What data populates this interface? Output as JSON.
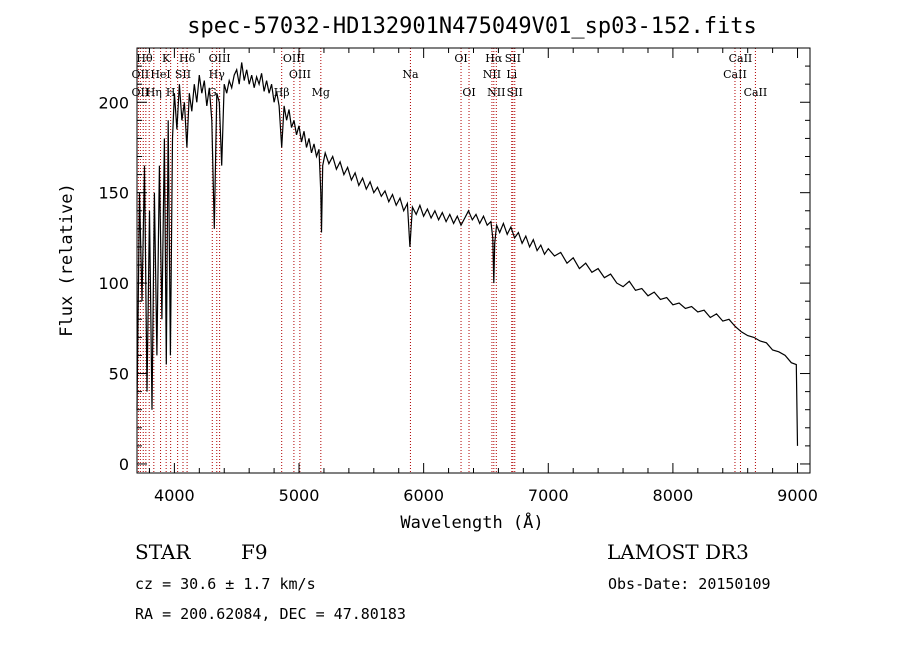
{
  "chart_data": {
    "type": "line",
    "title": "spec-57032-HD132901N475049V01_sp03-152.fits",
    "xlabel": "Wavelength (Å)",
    "ylabel": "Flux (relative)",
    "xlim": [
      3700,
      9100
    ],
    "ylim": [
      -5,
      230
    ],
    "x_ticks": [
      4000,
      5000,
      6000,
      7000,
      8000,
      9000
    ],
    "y_ticks": [
      0,
      50,
      100,
      150,
      200
    ],
    "grid": false,
    "series": [
      {
        "color": "#000000",
        "points": [
          [
            3700,
            30
          ],
          [
            3720,
            150
          ],
          [
            3740,
            90
          ],
          [
            3760,
            165
          ],
          [
            3780,
            40
          ],
          [
            3800,
            140
          ],
          [
            3820,
            30
          ],
          [
            3840,
            150
          ],
          [
            3860,
            60
          ],
          [
            3880,
            165
          ],
          [
            3900,
            80
          ],
          [
            3920,
            180
          ],
          [
            3935,
            55
          ],
          [
            3950,
            190
          ],
          [
            3968,
            60
          ],
          [
            3985,
            180
          ],
          [
            4000,
            205
          ],
          [
            4020,
            185
          ],
          [
            4040,
            210
          ],
          [
            4060,
            190
          ],
          [
            4080,
            200
          ],
          [
            4100,
            175
          ],
          [
            4120,
            205
          ],
          [
            4140,
            195
          ],
          [
            4160,
            210
          ],
          [
            4180,
            200
          ],
          [
            4200,
            215
          ],
          [
            4220,
            205
          ],
          [
            4240,
            212
          ],
          [
            4260,
            198
          ],
          [
            4280,
            208
          ],
          [
            4300,
            190
          ],
          [
            4320,
            130
          ],
          [
            4340,
            205
          ],
          [
            4360,
            200
          ],
          [
            4380,
            165
          ],
          [
            4400,
            210
          ],
          [
            4420,
            205
          ],
          [
            4440,
            212
          ],
          [
            4460,
            208
          ],
          [
            4480,
            215
          ],
          [
            4500,
            218
          ],
          [
            4520,
            210
          ],
          [
            4540,
            222
          ],
          [
            4560,
            212
          ],
          [
            4580,
            218
          ],
          [
            4600,
            210
          ],
          [
            4620,
            215
          ],
          [
            4640,
            208
          ],
          [
            4660,
            214
          ],
          [
            4680,
            210
          ],
          [
            4700,
            216
          ],
          [
            4720,
            206
          ],
          [
            4740,
            212
          ],
          [
            4760,
            205
          ],
          [
            4780,
            210
          ],
          [
            4800,
            200
          ],
          [
            4820,
            206
          ],
          [
            4840,
            198
          ],
          [
            4861,
            175
          ],
          [
            4880,
            198
          ],
          [
            4900,
            190
          ],
          [
            4920,
            196
          ],
          [
            4940,
            186
          ],
          [
            4960,
            190
          ],
          [
            4980,
            182
          ],
          [
            5000,
            187
          ],
          [
            5020,
            178
          ],
          [
            5040,
            184
          ],
          [
            5060,
            175
          ],
          [
            5080,
            180
          ],
          [
            5100,
            172
          ],
          [
            5120,
            177
          ],
          [
            5140,
            170
          ],
          [
            5160,
            174
          ],
          [
            5175,
            150
          ],
          [
            5180,
            128
          ],
          [
            5190,
            165
          ],
          [
            5210,
            172
          ],
          [
            5240,
            166
          ],
          [
            5270,
            170
          ],
          [
            5300,
            163
          ],
          [
            5330,
            167
          ],
          [
            5360,
            160
          ],
          [
            5390,
            164
          ],
          [
            5420,
            157
          ],
          [
            5450,
            161
          ],
          [
            5480,
            154
          ],
          [
            5510,
            158
          ],
          [
            5540,
            152
          ],
          [
            5570,
            156
          ],
          [
            5600,
            150
          ],
          [
            5630,
            153
          ],
          [
            5660,
            148
          ],
          [
            5690,
            151
          ],
          [
            5720,
            145
          ],
          [
            5750,
            149
          ],
          [
            5780,
            143
          ],
          [
            5810,
            147
          ],
          [
            5840,
            140
          ],
          [
            5870,
            144
          ],
          [
            5890,
            120
          ],
          [
            5910,
            142
          ],
          [
            5940,
            138
          ],
          [
            5970,
            143
          ],
          [
            6000,
            137
          ],
          [
            6030,
            141
          ],
          [
            6060,
            136
          ],
          [
            6090,
            140
          ],
          [
            6120,
            135
          ],
          [
            6150,
            139
          ],
          [
            6180,
            134
          ],
          [
            6210,
            138
          ],
          [
            6240,
            133
          ],
          [
            6270,
            137
          ],
          [
            6300,
            132
          ],
          [
            6330,
            136
          ],
          [
            6360,
            140
          ],
          [
            6390,
            135
          ],
          [
            6420,
            138
          ],
          [
            6450,
            133
          ],
          [
            6480,
            137
          ],
          [
            6510,
            132
          ],
          [
            6540,
            134
          ],
          [
            6555,
            125
          ],
          [
            6563,
            100
          ],
          [
            6570,
            122
          ],
          [
            6585,
            132
          ],
          [
            6610,
            128
          ],
          [
            6640,
            133
          ],
          [
            6670,
            127
          ],
          [
            6700,
            131
          ],
          [
            6730,
            125
          ],
          [
            6760,
            128
          ],
          [
            6790,
            122
          ],
          [
            6820,
            126
          ],
          [
            6850,
            120
          ],
          [
            6880,
            124
          ],
          [
            6910,
            118
          ],
          [
            6940,
            121
          ],
          [
            6970,
            116
          ],
          [
            7000,
            119
          ],
          [
            7050,
            115
          ],
          [
            7100,
            117
          ],
          [
            7150,
            111
          ],
          [
            7200,
            114
          ],
          [
            7250,
            108
          ],
          [
            7300,
            111
          ],
          [
            7350,
            106
          ],
          [
            7400,
            108
          ],
          [
            7450,
            103
          ],
          [
            7500,
            105
          ],
          [
            7550,
            100
          ],
          [
            7600,
            98
          ],
          [
            7650,
            101
          ],
          [
            7700,
            96
          ],
          [
            7750,
            97
          ],
          [
            7800,
            93
          ],
          [
            7850,
            95
          ],
          [
            7900,
            91
          ],
          [
            7950,
            92
          ],
          [
            8000,
            88
          ],
          [
            8050,
            89
          ],
          [
            8100,
            86
          ],
          [
            8150,
            87
          ],
          [
            8200,
            84
          ],
          [
            8250,
            85
          ],
          [
            8300,
            81
          ],
          [
            8350,
            83
          ],
          [
            8400,
            79
          ],
          [
            8450,
            80
          ],
          [
            8500,
            76
          ],
          [
            8550,
            73
          ],
          [
            8600,
            71
          ],
          [
            8650,
            70
          ],
          [
            8700,
            68
          ],
          [
            8750,
            67
          ],
          [
            8800,
            63
          ],
          [
            8850,
            62
          ],
          [
            8900,
            60
          ],
          [
            8950,
            56
          ],
          [
            8990,
            55
          ],
          [
            9000,
            10
          ]
        ]
      }
    ],
    "lines": [
      {
        "x": 3711,
        "color": "#b00000"
      },
      {
        "x": 3727,
        "color": "#b00000"
      },
      {
        "x": 3750,
        "color": "#b00000"
      },
      {
        "x": 3771,
        "color": "#b00000"
      },
      {
        "x": 3798,
        "color": "#b00000"
      },
      {
        "x": 3835,
        "color": "#b00000"
      },
      {
        "x": 3889,
        "color": "#b00000"
      },
      {
        "x": 3934,
        "color": "#b00000"
      },
      {
        "x": 3970,
        "color": "#b00000"
      },
      {
        "x": 4026,
        "color": "#b00000"
      },
      {
        "x": 4069,
        "color": "#b00000"
      },
      {
        "x": 4102,
        "color": "#b00000"
      },
      {
        "x": 4304,
        "color": "#b00000"
      },
      {
        "x": 4340,
        "color": "#b00000"
      },
      {
        "x": 4363,
        "color": "#b00000"
      },
      {
        "x": 4861,
        "color": "#b00000"
      },
      {
        "x": 4959,
        "color": "#b00000"
      },
      {
        "x": 5007,
        "color": "#b00000"
      },
      {
        "x": 5175,
        "color": "#b00000"
      },
      {
        "x": 5894,
        "color": "#b00000"
      },
      {
        "x": 6300,
        "color": "#b00000"
      },
      {
        "x": 6364,
        "color": "#b00000"
      },
      {
        "x": 6548,
        "color": "#b00000"
      },
      {
        "x": 6563,
        "color": "#b00000"
      },
      {
        "x": 6583,
        "color": "#b00000"
      },
      {
        "x": 6707,
        "color": "#b00000"
      },
      {
        "x": 6716,
        "color": "#b00000"
      },
      {
        "x": 6731,
        "color": "#b00000"
      },
      {
        "x": 8498,
        "color": "#b00000"
      },
      {
        "x": 8542,
        "color": "#b00000"
      },
      {
        "x": 8662,
        "color": "#b00000"
      }
    ],
    "line_labels": [
      {
        "text": "Hθ",
        "x": 3760,
        "row": 1
      },
      {
        "text": "K",
        "x": 3934,
        "row": 1
      },
      {
        "text": "Hδ",
        "x": 4102,
        "row": 1
      },
      {
        "text": "OIII",
        "x": 4363,
        "row": 1
      },
      {
        "text": "OIII",
        "x": 4959,
        "row": 1
      },
      {
        "text": "OI",
        "x": 6300,
        "row": 1
      },
      {
        "text": "Hα",
        "x": 6563,
        "row": 1
      },
      {
        "text": "SII",
        "x": 6716,
        "row": 1
      },
      {
        "text": "CaII",
        "x": 8542,
        "row": 1
      },
      {
        "text": "OII",
        "x": 3727,
        "row": 2
      },
      {
        "text": "HeI",
        "x": 3889,
        "row": 2
      },
      {
        "text": "SII",
        "x": 4069,
        "row": 2
      },
      {
        "text": "Hγ",
        "x": 4340,
        "row": 2
      },
      {
        "text": "OIII",
        "x": 5007,
        "row": 2
      },
      {
        "text": "Na",
        "x": 5894,
        "row": 2
      },
      {
        "text": "NII",
        "x": 6548,
        "row": 2
      },
      {
        "text": "Li",
        "x": 6707,
        "row": 2
      },
      {
        "text": "CaII",
        "x": 8498,
        "row": 2
      },
      {
        "text": "OII",
        "x": 3727,
        "row": 3
      },
      {
        "text": "Hη",
        "x": 3835,
        "row": 3
      },
      {
        "text": "H",
        "x": 3970,
        "row": 3
      },
      {
        "text": "G",
        "x": 4304,
        "row": 3
      },
      {
        "text": "Hβ",
        "x": 4861,
        "row": 3
      },
      {
        "text": "Mg",
        "x": 5175,
        "row": 3
      },
      {
        "text": "OI",
        "x": 6364,
        "row": 3
      },
      {
        "text": "NII",
        "x": 6583,
        "row": 3
      },
      {
        "text": "SII",
        "x": 6731,
        "row": 3
      },
      {
        "text": "CaII",
        "x": 8662,
        "row": 3
      }
    ]
  },
  "info": {
    "object_type": "STAR",
    "spectral_class": "F9",
    "survey": "LAMOST DR3",
    "cz": "cz = 30.6 ± 1.7 km/s",
    "obs_date": "Obs-Date: 20150109",
    "coords": "RA = 200.62084, DEC =  47.80183"
  }
}
